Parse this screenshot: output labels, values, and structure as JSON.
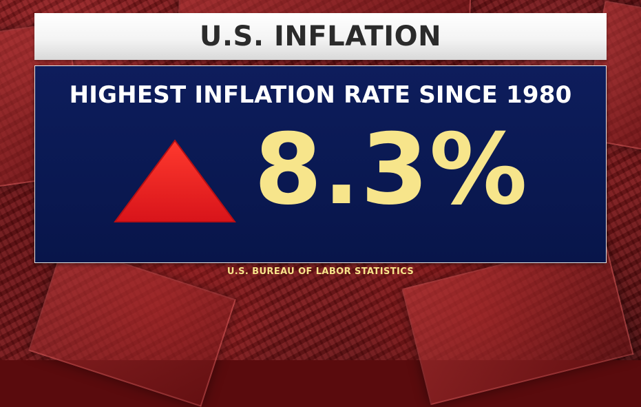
{
  "banner": {
    "title": "U.S. INFLATION"
  },
  "panel": {
    "heading": "HIGHEST INFLATION RATE SINCE 1980",
    "value": "8.3%",
    "direction_icon": "up-triangle-icon"
  },
  "source": {
    "text": "U.S. BUREAU OF LABOR STATISTICS"
  },
  "colors": {
    "banner_bg": "#f2f2f2",
    "banner_text": "#2b2b2b",
    "panel_bg": "#0b1a55",
    "heading_text": "#ffffff",
    "value_text": "#f7e58b",
    "arrow_fill": "#e51b1b",
    "background_tint": "#7a1416"
  }
}
